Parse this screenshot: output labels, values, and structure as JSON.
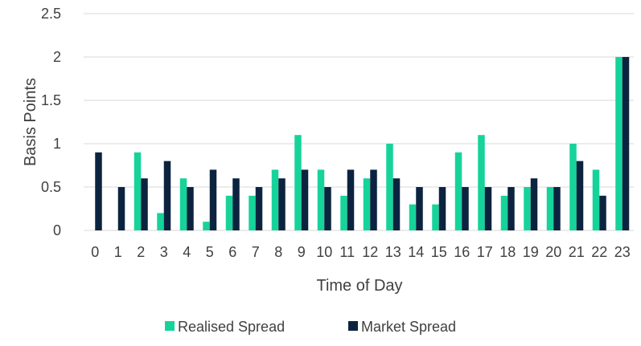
{
  "chart_data": {
    "type": "bar",
    "title": "",
    "xlabel": "Time of Day",
    "ylabel": "Basis Points",
    "ylim": [
      0,
      2.5
    ],
    "yticks": [
      "0",
      "0.5",
      "1",
      "1.5",
      "2",
      "2.5"
    ],
    "categories": [
      "0",
      "1",
      "2",
      "3",
      "4",
      "5",
      "6",
      "7",
      "8",
      "9",
      "10",
      "11",
      "12",
      "13",
      "14",
      "15",
      "16",
      "17",
      "18",
      "19",
      "20",
      "21",
      "22",
      "23"
    ],
    "series": [
      {
        "name": "Realised Spread",
        "color": "#16d39a",
        "values": [
          0,
          0,
          0.9,
          0.2,
          0.6,
          0.1,
          0.4,
          0.4,
          0.7,
          1.1,
          0.7,
          0.4,
          0.6,
          1.0,
          0.3,
          0.3,
          0.9,
          1.1,
          0.4,
          0.5,
          0.5,
          1.0,
          0.7,
          2.0
        ]
      },
      {
        "name": "Market Spread",
        "color": "#0c2340",
        "values": [
          0.9,
          0.5,
          0.6,
          0.8,
          0.5,
          0.7,
          0.6,
          0.5,
          0.6,
          0.7,
          0.5,
          0.7,
          0.7,
          0.6,
          0.5,
          0.5,
          0.5,
          0.5,
          0.5,
          0.6,
          0.5,
          0.8,
          0.4,
          2.0
        ]
      }
    ],
    "grid": true,
    "legend_position": "bottom"
  }
}
